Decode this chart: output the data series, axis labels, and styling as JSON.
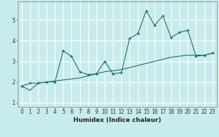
{
  "xlabel": "Humidex (Indice chaleur)",
  "background_color": "#c8ecec",
  "grid_color": "#ffffff",
  "line_color": "#1a6b6b",
  "x_data": [
    0,
    1,
    2,
    3,
    4,
    5,
    6,
    7,
    8,
    9,
    10,
    11,
    12,
    13,
    14,
    15,
    16,
    17,
    18,
    19,
    20,
    21,
    22,
    23
  ],
  "y_line1": [
    1.8,
    1.95,
    1.95,
    2.0,
    2.0,
    3.5,
    3.25,
    2.5,
    2.35,
    2.4,
    3.0,
    2.4,
    2.45,
    4.1,
    4.35,
    5.45,
    4.75,
    5.2,
    4.15,
    4.4,
    4.5,
    3.25,
    3.3,
    3.4
  ],
  "y_line2": [
    1.8,
    1.6,
    1.95,
    2.0,
    2.05,
    2.1,
    2.15,
    2.2,
    2.3,
    2.4,
    2.5,
    2.55,
    2.6,
    2.7,
    2.8,
    2.9,
    3.0,
    3.1,
    3.2,
    3.25,
    3.3,
    3.3,
    3.3,
    3.4
  ],
  "ylim": [
    0.8,
    5.9
  ],
  "xlim": [
    -0.5,
    23.5
  ],
  "yticks": [
    1,
    2,
    3,
    4,
    5
  ],
  "xticks": [
    0,
    1,
    2,
    3,
    4,
    5,
    6,
    7,
    8,
    9,
    10,
    11,
    12,
    13,
    14,
    15,
    16,
    17,
    18,
    19,
    20,
    21,
    22,
    23
  ],
  "tick_fontsize": 5.5,
  "xlabel_fontsize": 6.5
}
